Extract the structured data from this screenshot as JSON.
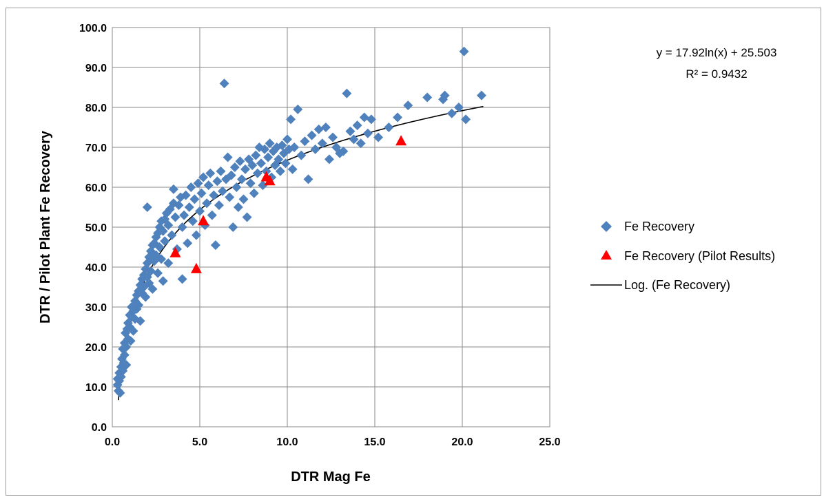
{
  "chart_data": {
    "type": "scatter",
    "xlabel": "DTR Mag Fe",
    "ylabel": "DTR / Pilot Plant Fe Recovery",
    "xlim": [
      0,
      25
    ],
    "ylim": [
      0,
      100
    ],
    "x_ticks": [
      "0.0",
      "5.0",
      "10.0",
      "15.0",
      "20.0",
      "25.0"
    ],
    "y_ticks": [
      "0.0",
      "10.0",
      "20.0",
      "30.0",
      "40.0",
      "50.0",
      "60.0",
      "70.0",
      "80.0",
      "90.0",
      "100.0"
    ],
    "grid": "horizontal and vertical major gridlines",
    "legend_position": "right",
    "trendline": {
      "name": "Log. (Fe Recovery)",
      "type": "logarithmic",
      "a": 17.92,
      "b": 25.503,
      "x_range": [
        0.35,
        21.2
      ],
      "equation_label": "y = 17.92ln(x) + 25.503",
      "r2_label": "R² = 0.9432"
    },
    "series": [
      {
        "name": "Fe Recovery",
        "marker": "diamond",
        "color": "#4f81bd",
        "points": [
          [
            0.3,
            10.5
          ],
          [
            0.3,
            12.0
          ],
          [
            0.35,
            9.0
          ],
          [
            0.4,
            11.5
          ],
          [
            0.4,
            13.5
          ],
          [
            0.45,
            8.5
          ],
          [
            0.5,
            15.0
          ],
          [
            0.5,
            12.5
          ],
          [
            0.55,
            17.0
          ],
          [
            0.6,
            14.0
          ],
          [
            0.6,
            19.5
          ],
          [
            0.65,
            16.0
          ],
          [
            0.7,
            21.0
          ],
          [
            0.7,
            18.0
          ],
          [
            0.75,
            23.5
          ],
          [
            0.8,
            20.0
          ],
          [
            0.8,
            15.5
          ],
          [
            0.85,
            24.5
          ],
          [
            0.9,
            22.0
          ],
          [
            0.9,
            26.0
          ],
          [
            1.0,
            25.0
          ],
          [
            1.0,
            28.0
          ],
          [
            1.05,
            21.5
          ],
          [
            1.1,
            27.5
          ],
          [
            1.1,
            30.0
          ],
          [
            1.2,
            29.0
          ],
          [
            1.2,
            24.0
          ],
          [
            1.3,
            31.5
          ],
          [
            1.3,
            27.0
          ],
          [
            1.4,
            33.0
          ],
          [
            1.4,
            29.5
          ],
          [
            1.5,
            34.0
          ],
          [
            1.5,
            30.5
          ],
          [
            1.6,
            35.5
          ],
          [
            1.6,
            26.5
          ],
          [
            1.7,
            37.0
          ],
          [
            1.7,
            33.5
          ],
          [
            1.8,
            38.0
          ],
          [
            1.8,
            35.0
          ],
          [
            1.9,
            39.5
          ],
          [
            1.9,
            32.5
          ],
          [
            2.0,
            41.0
          ],
          [
            2.0,
            37.5
          ],
          [
            2.0,
            55.0
          ],
          [
            2.1,
            42.5
          ],
          [
            2.1,
            36.0
          ],
          [
            2.2,
            44.0
          ],
          [
            2.2,
            39.0
          ],
          [
            2.3,
            45.5
          ],
          [
            2.3,
            34.5
          ],
          [
            2.4,
            46.0
          ],
          [
            2.4,
            41.5
          ],
          [
            2.5,
            47.5
          ],
          [
            2.5,
            43.0
          ],
          [
            2.6,
            48.5
          ],
          [
            2.6,
            38.5
          ],
          [
            2.7,
            50.0
          ],
          [
            2.7,
            45.0
          ],
          [
            2.8,
            51.5
          ],
          [
            2.8,
            42.0
          ],
          [
            2.9,
            49.0
          ],
          [
            2.9,
            36.5
          ],
          [
            3.0,
            52.0
          ],
          [
            3.0,
            46.5
          ],
          [
            3.1,
            53.5
          ],
          [
            3.2,
            50.5
          ],
          [
            3.2,
            41.0
          ],
          [
            3.3,
            54.5
          ],
          [
            3.4,
            48.0
          ],
          [
            3.5,
            56.0
          ],
          [
            3.5,
            59.5
          ],
          [
            3.6,
            52.5
          ],
          [
            3.7,
            44.5
          ],
          [
            3.8,
            55.5
          ],
          [
            3.9,
            57.5
          ],
          [
            4.0,
            50.0
          ],
          [
            4.0,
            37.0
          ],
          [
            4.1,
            53.0
          ],
          [
            4.2,
            58.0
          ],
          [
            4.3,
            46.0
          ],
          [
            4.4,
            55.0
          ],
          [
            4.5,
            60.0
          ],
          [
            4.6,
            51.5
          ],
          [
            4.7,
            57.0
          ],
          [
            4.8,
            48.0
          ],
          [
            4.9,
            61.0
          ],
          [
            5.0,
            54.0
          ],
          [
            5.1,
            58.5
          ],
          [
            5.2,
            62.5
          ],
          [
            5.3,
            50.5
          ],
          [
            5.4,
            56.0
          ],
          [
            5.5,
            60.5
          ],
          [
            5.6,
            63.5
          ],
          [
            5.7,
            53.0
          ],
          [
            5.8,
            58.0
          ],
          [
            5.9,
            45.5
          ],
          [
            6.0,
            61.5
          ],
          [
            6.1,
            55.5
          ],
          [
            6.2,
            64.0
          ],
          [
            6.3,
            59.0
          ],
          [
            6.4,
            86.0
          ],
          [
            6.5,
            62.0
          ],
          [
            6.6,
            67.5
          ],
          [
            6.7,
            57.5
          ],
          [
            6.8,
            63.0
          ],
          [
            6.9,
            50.0
          ],
          [
            7.0,
            65.0
          ],
          [
            7.1,
            60.0
          ],
          [
            7.2,
            55.0
          ],
          [
            7.3,
            66.5
          ],
          [
            7.4,
            62.0
          ],
          [
            7.5,
            57.0
          ],
          [
            7.6,
            64.5
          ],
          [
            7.7,
            52.5
          ],
          [
            7.8,
            67.0
          ],
          [
            7.9,
            61.0
          ],
          [
            8.0,
            65.5
          ],
          [
            8.1,
            58.5
          ],
          [
            8.2,
            68.0
          ],
          [
            8.3,
            63.5
          ],
          [
            8.4,
            70.0
          ],
          [
            8.5,
            66.0
          ],
          [
            8.6,
            60.5
          ],
          [
            8.7,
            69.5
          ],
          [
            8.8,
            64.0
          ],
          [
            8.9,
            67.5
          ],
          [
            9.0,
            71.0
          ],
          [
            9.1,
            62.5
          ],
          [
            9.2,
            69.0
          ],
          [
            9.3,
            65.5
          ],
          [
            9.4,
            70.0
          ],
          [
            9.5,
            67.0
          ],
          [
            9.6,
            64.0
          ],
          [
            9.7,
            70.5
          ],
          [
            9.8,
            68.5
          ],
          [
            9.9,
            66.0
          ],
          [
            10.0,
            72.0
          ],
          [
            10.1,
            69.5
          ],
          [
            10.2,
            77.0
          ],
          [
            10.3,
            64.5
          ],
          [
            10.4,
            70.0
          ],
          [
            10.6,
            79.5
          ],
          [
            10.8,
            68.0
          ],
          [
            11.0,
            71.5
          ],
          [
            11.2,
            62.0
          ],
          [
            11.4,
            73.0
          ],
          [
            11.6,
            69.5
          ],
          [
            11.8,
            74.5
          ],
          [
            12.0,
            71.0
          ],
          [
            12.2,
            75.0
          ],
          [
            12.4,
            67.0
          ],
          [
            12.6,
            72.5
          ],
          [
            12.8,
            70.0
          ],
          [
            13.0,
            68.5
          ],
          [
            13.2,
            69.0
          ],
          [
            13.4,
            83.5
          ],
          [
            13.6,
            74.0
          ],
          [
            13.8,
            72.0
          ],
          [
            14.0,
            75.5
          ],
          [
            14.2,
            71.0
          ],
          [
            14.4,
            77.5
          ],
          [
            14.6,
            73.5
          ],
          [
            14.8,
            77.0
          ],
          [
            15.2,
            72.5
          ],
          [
            15.8,
            75.0
          ],
          [
            16.3,
            77.5
          ],
          [
            16.9,
            80.5
          ],
          [
            18.0,
            82.5
          ],
          [
            18.9,
            82.0
          ],
          [
            19.0,
            83.0
          ],
          [
            19.4,
            78.5
          ],
          [
            19.8,
            80.0
          ],
          [
            20.1,
            94.0
          ],
          [
            20.2,
            77.0
          ],
          [
            21.1,
            83.0
          ]
        ]
      },
      {
        "name": "Fe Recovery (Pilot Results)",
        "marker": "triangle",
        "color": "#ff0000",
        "points": [
          [
            3.6,
            43.5
          ],
          [
            4.8,
            39.5
          ],
          [
            5.2,
            51.5
          ],
          [
            8.8,
            62.5
          ],
          [
            9.0,
            61.5
          ],
          [
            16.5,
            71.5
          ]
        ]
      }
    ]
  }
}
